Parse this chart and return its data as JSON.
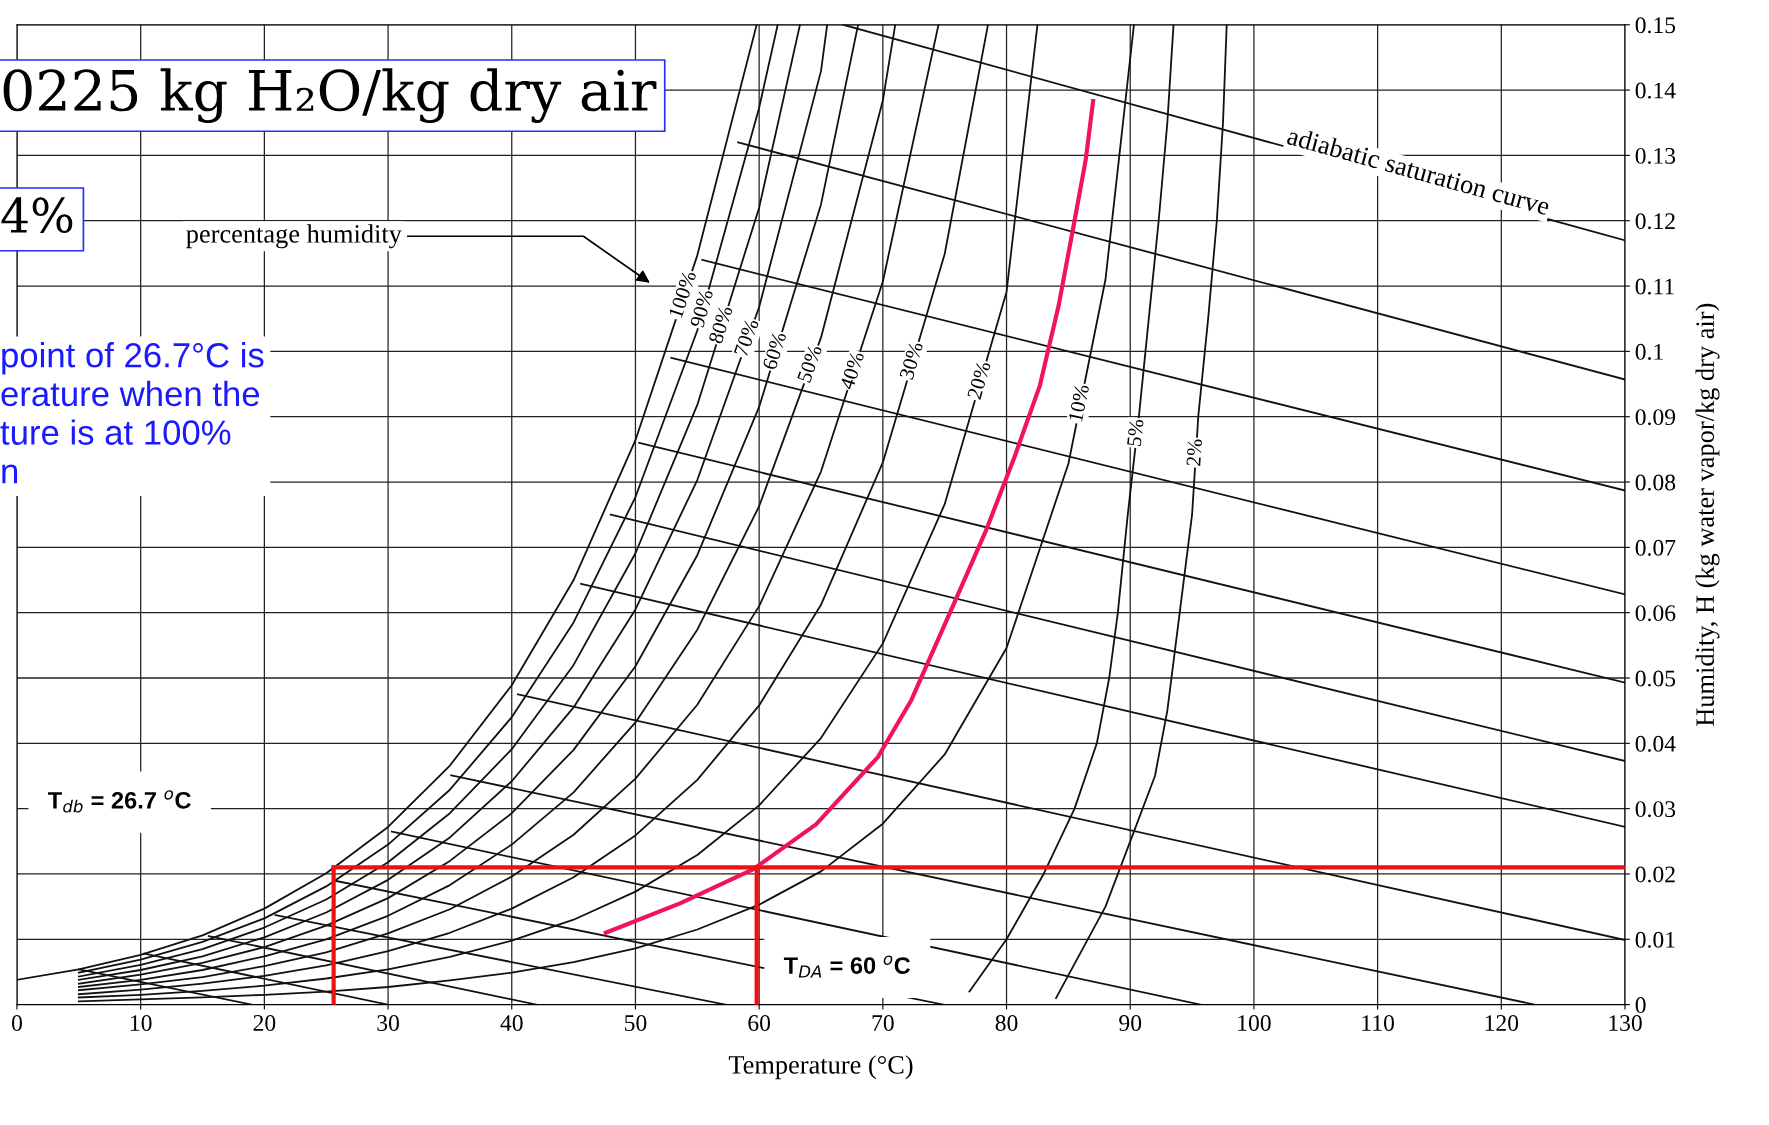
{
  "chart_data": {
    "type": "line",
    "xlabel": "Temperature (°C)",
    "ylabel": "Humidity, H (kg water vapor/kg dry air)",
    "xlim": [
      0,
      130
    ],
    "ylim": [
      0,
      0.15
    ],
    "xticks": [
      0,
      10,
      20,
      30,
      40,
      50,
      60,
      70,
      80,
      90,
      100,
      110,
      120,
      130
    ],
    "yticks": [
      {
        "value": 0,
        "label": "0"
      },
      0.01,
      0.02,
      0.03,
      0.04,
      0.05,
      0.06,
      0.07,
      0.08,
      0.09,
      0.1,
      0.11,
      0.12,
      0.13,
      0.14,
      0.15
    ],
    "grid": true,
    "legend": false,
    "marker": "none",
    "line_style": "solid",
    "series": [
      {
        "name": "100%",
        "color": "#111111",
        "x": [
          0,
          5,
          10,
          15,
          20,
          25,
          30,
          35,
          40,
          45,
          50,
          55,
          59.8
        ],
        "values": [
          0.0038,
          0.0054,
          0.0076,
          0.0106,
          0.0147,
          0.0201,
          0.0272,
          0.0366,
          0.0489,
          0.065,
          0.0864,
          0.1147,
          0.15
        ]
      },
      {
        "name": "90%",
        "color": "#111111",
        "x": [
          5,
          10,
          15,
          20,
          25,
          30,
          35,
          40,
          45,
          50,
          55,
          60,
          61.5
        ],
        "values": [
          0.0049,
          0.0069,
          0.0096,
          0.0132,
          0.0181,
          0.0245,
          0.0329,
          0.044,
          0.0585,
          0.0777,
          0.1032,
          0.1373,
          0.15
        ]
      },
      {
        "name": "80%",
        "color": "#111111",
        "x": [
          5,
          10,
          15,
          20,
          25,
          30,
          35,
          40,
          45,
          50,
          55,
          60,
          63.3
        ],
        "values": [
          0.0043,
          0.0061,
          0.0085,
          0.0118,
          0.0161,
          0.0218,
          0.0293,
          0.0391,
          0.052,
          0.0691,
          0.0918,
          0.122,
          0.15
        ]
      },
      {
        "name": "70%",
        "color": "#111111",
        "x": [
          5,
          10,
          15,
          20,
          25,
          30,
          35,
          40,
          45,
          50,
          55,
          60,
          65,
          65.5
        ],
        "values": [
          0.0038,
          0.0053,
          0.0074,
          0.0103,
          0.0141,
          0.0191,
          0.0256,
          0.0342,
          0.0455,
          0.0605,
          0.0803,
          0.1068,
          0.1429,
          0.15
        ]
      },
      {
        "name": "60%",
        "color": "#111111",
        "x": [
          5,
          10,
          15,
          20,
          25,
          30,
          35,
          40,
          45,
          50,
          55,
          60,
          65,
          68
        ],
        "values": [
          0.0032,
          0.0046,
          0.0064,
          0.0088,
          0.0121,
          0.0163,
          0.022,
          0.0293,
          0.039,
          0.0518,
          0.0688,
          0.0915,
          0.1225,
          0.15
        ]
      },
      {
        "name": "50%",
        "color": "#111111",
        "x": [
          5,
          10,
          15,
          20,
          25,
          30,
          35,
          40,
          45,
          50,
          55,
          60,
          65,
          70,
          71
        ],
        "values": [
          0.0027,
          0.0038,
          0.0053,
          0.0074,
          0.01,
          0.0136,
          0.0183,
          0.0245,
          0.0325,
          0.0432,
          0.0574,
          0.0763,
          0.1021,
          0.1384,
          0.15
        ]
      },
      {
        "name": "40%",
        "color": "#111111",
        "x": [
          5,
          10,
          15,
          20,
          25,
          30,
          35,
          40,
          45,
          50,
          55,
          60,
          65,
          70,
          74.5
        ],
        "values": [
          0.0022,
          0.0031,
          0.0042,
          0.0059,
          0.008,
          0.0109,
          0.0146,
          0.0196,
          0.026,
          0.0346,
          0.0459,
          0.061,
          0.0816,
          0.1107,
          0.15
        ]
      },
      {
        "name": "30%",
        "color": "#111111",
        "x": [
          5,
          10,
          15,
          20,
          25,
          30,
          35,
          40,
          45,
          50,
          55,
          60,
          65,
          70,
          75,
          78.5
        ],
        "values": [
          0.0016,
          0.0023,
          0.0032,
          0.0044,
          0.006,
          0.0082,
          0.011,
          0.0147,
          0.0195,
          0.0259,
          0.0344,
          0.0458,
          0.0612,
          0.083,
          0.1149,
          0.15
        ]
      },
      {
        "name": "20%",
        "color": "#111111",
        "x": [
          5,
          10,
          15,
          20,
          25,
          30,
          35,
          40,
          45,
          50,
          55,
          60,
          65,
          70,
          75,
          80,
          82.5
        ],
        "values": [
          0.0011,
          0.0015,
          0.0021,
          0.0029,
          0.004,
          0.0054,
          0.0073,
          0.0098,
          0.013,
          0.0173,
          0.0229,
          0.0305,
          0.0408,
          0.0553,
          0.0766,
          0.1091,
          0.15
        ]
      },
      {
        "name": "10%",
        "color": "#111111",
        "x": [
          5,
          10,
          15,
          20,
          25,
          30,
          35,
          40,
          45,
          50,
          55,
          60,
          65,
          70,
          75,
          80,
          85,
          88,
          90.3
        ],
        "values": [
          0.0005,
          0.0008,
          0.0011,
          0.0015,
          0.002,
          0.0027,
          0.0037,
          0.0049,
          0.0065,
          0.0086,
          0.0115,
          0.0153,
          0.0204,
          0.0277,
          0.0383,
          0.0546,
          0.0828,
          0.111,
          0.15
        ]
      },
      {
        "name": "5%",
        "color": "#111111",
        "x": [
          77,
          80,
          83,
          85.5,
          87.3,
          88.3,
          89,
          89.8,
          90.7,
          91.5,
          92.3,
          93,
          93.5
        ],
        "values": [
          0.002,
          0.01,
          0.02,
          0.03,
          0.04,
          0.05,
          0.06,
          0.075,
          0.09,
          0.105,
          0.12,
          0.135,
          0.15
        ]
      },
      {
        "name": "2%",
        "color": "#111111",
        "x": [
          84,
          86,
          88,
          90,
          92,
          93,
          94,
          95,
          95.5,
          96.3,
          97,
          97.5,
          97.8
        ],
        "values": [
          0.001,
          0.008,
          0.015,
          0.025,
          0.035,
          0.045,
          0.06,
          0.075,
          0.09,
          0.105,
          0.12,
          0.135,
          0.15
        ]
      },
      {
        "color": "#111111",
        "x": [
          66.8,
          130
        ],
        "values": [
          0.15,
          0.117
        ]
      },
      {
        "color": "#111111",
        "x": [
          58.3,
          130
        ],
        "values": [
          0.132,
          0.0957
        ]
      },
      {
        "color": "#111111",
        "x": [
          55.4,
          130
        ],
        "values": [
          0.114,
          0.0787
        ]
      },
      {
        "color": "#111111",
        "x": [
          52.9,
          130
        ],
        "values": [
          0.099,
          0.0628
        ]
      },
      {
        "color": "#111111",
        "x": [
          50.3,
          130
        ],
        "values": [
          0.086,
          0.0493
        ]
      },
      {
        "color": "#111111",
        "x": [
          48,
          130
        ],
        "values": [
          0.075,
          0.0373
        ]
      },
      {
        "color": "#111111",
        "x": [
          45.6,
          130
        ],
        "values": [
          0.0644,
          0.0272
        ]
      },
      {
        "color": "#111111",
        "x": [
          40.5,
          130
        ],
        "values": [
          0.0475,
          0.0099
        ]
      },
      {
        "color": "#111111",
        "x": [
          35.1,
          122.7
        ],
        "values": [
          0.0351,
          0
        ]
      },
      {
        "color": "#111111",
        "x": [
          30.3,
          95.7
        ],
        "values": [
          0.0265,
          0
        ]
      },
      {
        "color": "#111111",
        "x": [
          25.6,
          74.9
        ],
        "values": [
          0.019,
          0
        ]
      },
      {
        "color": "#111111",
        "x": [
          20.9,
          57.3
        ],
        "values": [
          0.0137,
          0
        ]
      },
      {
        "color": "#111111",
        "x": [
          15.5,
          42
        ],
        "values": [
          0.0105,
          0
        ]
      },
      {
        "color": "#111111",
        "x": [
          10.3,
          30
        ],
        "values": [
          0.0078,
          0
        ]
      },
      {
        "color": "#111111",
        "x": [
          5,
          19
        ],
        "values": [
          0.0054,
          0
        ]
      },
      {
        "color": "#f0145a",
        "x": [
          47.6,
          53.6,
          59.5,
          64.6,
          69.6,
          72.3,
          75.5,
          78.3,
          80.6,
          82.7,
          84.2,
          85.4,
          86.4,
          87
        ],
        "values": [
          0.011,
          0.0155,
          0.0207,
          0.0276,
          0.0379,
          0.0466,
          0.0603,
          0.0724,
          0.0836,
          0.0948,
          0.1069,
          0.119,
          0.1293,
          0.1383
        ]
      },
      {
        "color": "#ee1111",
        "x": [
          25.6,
          25.6
        ],
        "values": [
          0,
          0.021
        ]
      },
      {
        "color": "#ee1111",
        "x": [
          25.6,
          130
        ],
        "values": [
          0.021,
          0.021
        ]
      },
      {
        "color": "#ee1111",
        "x": [
          59.8,
          59.8
        ],
        "values": [
          0.021,
          0
        ]
      }
    ],
    "annotations": [
      "0225 kg H₂O/kg dry air",
      "4%",
      "point of 26.7°C is\nerature when the\nture is at 100%\nn",
      "T$_{db}$ = 26.7 $^{o}$C",
      "T$_{DA}$ = 60 $^{o}$C",
      "percentage humidity",
      {
        "text": "adiabatic saturation curve",
        "x": 113,
        "y": 0.1255
      }
    ]
  }
}
